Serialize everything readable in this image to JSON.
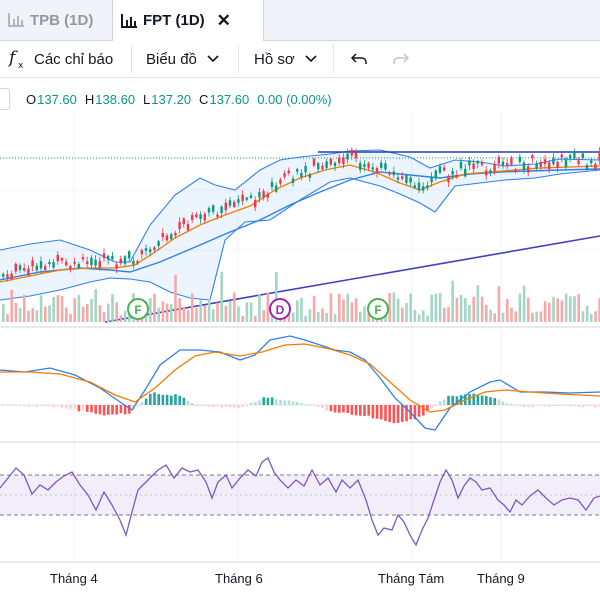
{
  "tabs": [
    {
      "label": "TPB (1D)",
      "active": false
    },
    {
      "label": "FPT (1D)",
      "active": true,
      "close_icon": "close-icon"
    }
  ],
  "toolbar": {
    "indicators_label": "Các chỉ báo",
    "chart_type_label": "Biểu đồ",
    "profile_label": "Hồ sơ",
    "undo_icon": "undo-icon",
    "redo_icon": "redo-icon"
  },
  "ohlc": {
    "o_label": "O",
    "o_value": "137.60",
    "h_label": "H",
    "h_value": "138.60",
    "l_label": "L",
    "l_value": "137.20",
    "c_label": "C",
    "c_value": "137.60",
    "change": "0.00 (0.00%)"
  },
  "events": [
    {
      "label": "F"
    },
    {
      "label": "D"
    },
    {
      "label": "F"
    }
  ],
  "x_axis": {
    "labels": [
      "Tháng 4",
      "Tháng 6",
      "Tháng Tám",
      "Tháng 9"
    ]
  },
  "colors": {
    "up": "#089981",
    "down": "#f23645",
    "bollinger": "#2f80ed",
    "ma_orange": "#f57c00",
    "trend": "#3f3fbf",
    "rsi": "#7e57c2",
    "event_green": "#4caf50",
    "event_purple": "#9c27b0"
  }
}
